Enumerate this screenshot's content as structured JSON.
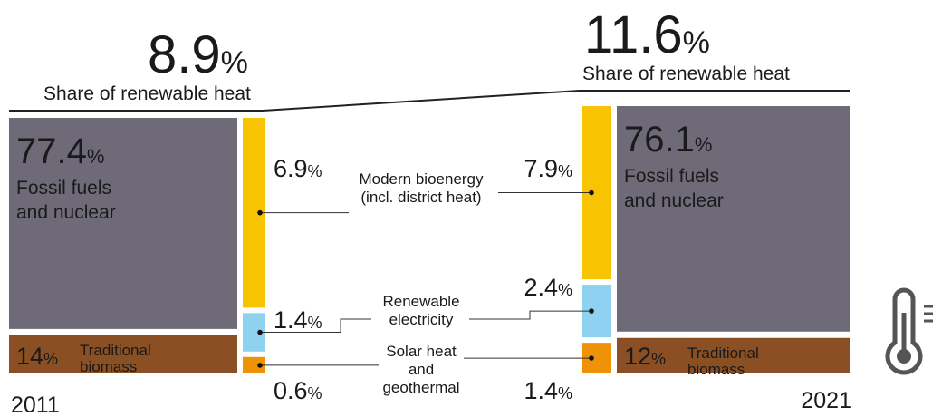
{
  "unit": "%",
  "share_label": "Share of renewable heat",
  "categories": {
    "fossil": [
      "Fossil fuels",
      "and nuclear"
    ],
    "traditional": [
      "Traditional",
      "biomass"
    ],
    "modern": [
      "Modern bioenergy",
      "(incl. district heat)"
    ],
    "electricity": [
      "Renewable",
      "electricity"
    ],
    "solar": [
      "Solar heat",
      "and",
      "geothermal"
    ]
  },
  "colors": {
    "fossil": "#6e6a78",
    "traditional": "#8a4f22",
    "modern": "#f8c300",
    "electricity": "#8fd1f0",
    "solar": "#f09208"
  },
  "years": [
    {
      "year": "2011",
      "renewable_share": 8.9,
      "fossil": 77.4,
      "traditional": 14,
      "modern": 6.9,
      "electricity": 1.4,
      "solar": 0.6
    },
    {
      "year": "2021",
      "renewable_share": 11.6,
      "fossil": 76.1,
      "traditional": 12,
      "modern": 7.9,
      "electricity": 2.4,
      "solar": 1.4
    }
  ]
}
